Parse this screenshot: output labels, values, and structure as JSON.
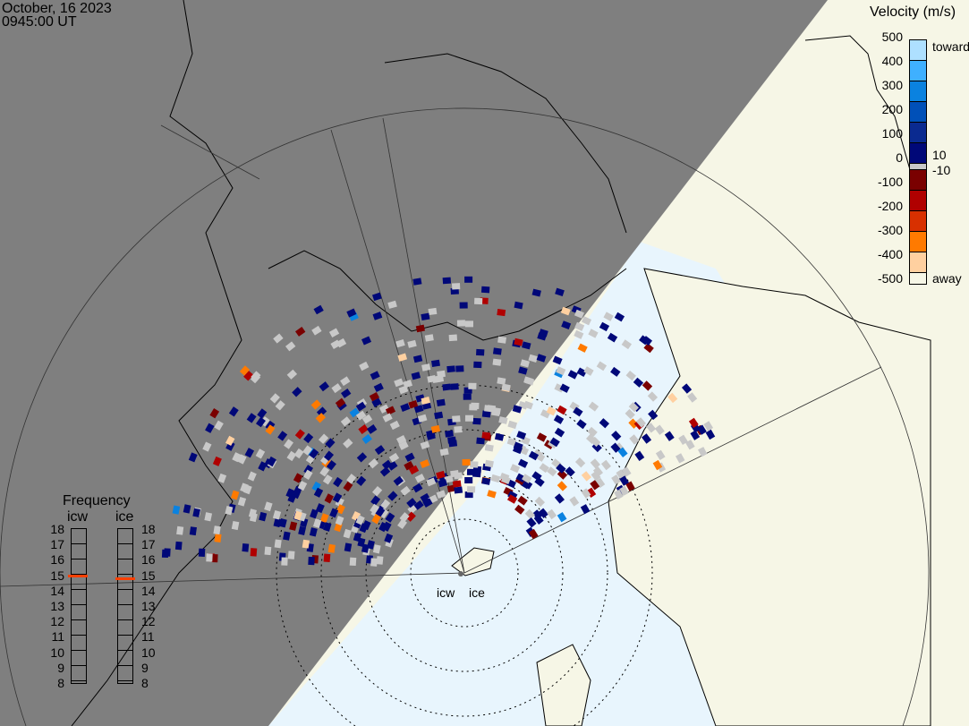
{
  "header": {
    "date": "October, 16 2023",
    "time": "0945:00 UT"
  },
  "colorbar": {
    "title": "Velocity (m/s)",
    "ticks": [
      "500",
      "400",
      "300",
      "200",
      "100",
      "0",
      "-100",
      "-200",
      "-300",
      "-400",
      "-500"
    ],
    "toward_label": "toward",
    "away_label": "away",
    "pos_threshold": "10",
    "neg_threshold": "-10",
    "colors": [
      "#aee0ff",
      "#3fb0ff",
      "#0a82e0",
      "#0050b8",
      "#0a2a90",
      "#000878",
      "#c8c8c8",
      "#7a0000",
      "#b00000",
      "#d83000",
      "#ff7a00",
      "#ffd0a0"
    ]
  },
  "frequency": {
    "title": "Frequency",
    "radars": [
      {
        "name": "icw",
        "value_mhz": 15.0
      },
      {
        "name": "ice",
        "value_mhz": 14.8
      }
    ],
    "ticks": [
      "18",
      "17",
      "16",
      "15",
      "14",
      "13",
      "12",
      "11",
      "10",
      "9",
      "8"
    ]
  },
  "radar_sites": [
    "icw",
    "ice"
  ],
  "colors": {
    "night": "#7f7f7f",
    "land_day": "#f6f6e6",
    "ocean_day": "#e8f5fd",
    "no_data_gray": "#c8c8c8"
  }
}
